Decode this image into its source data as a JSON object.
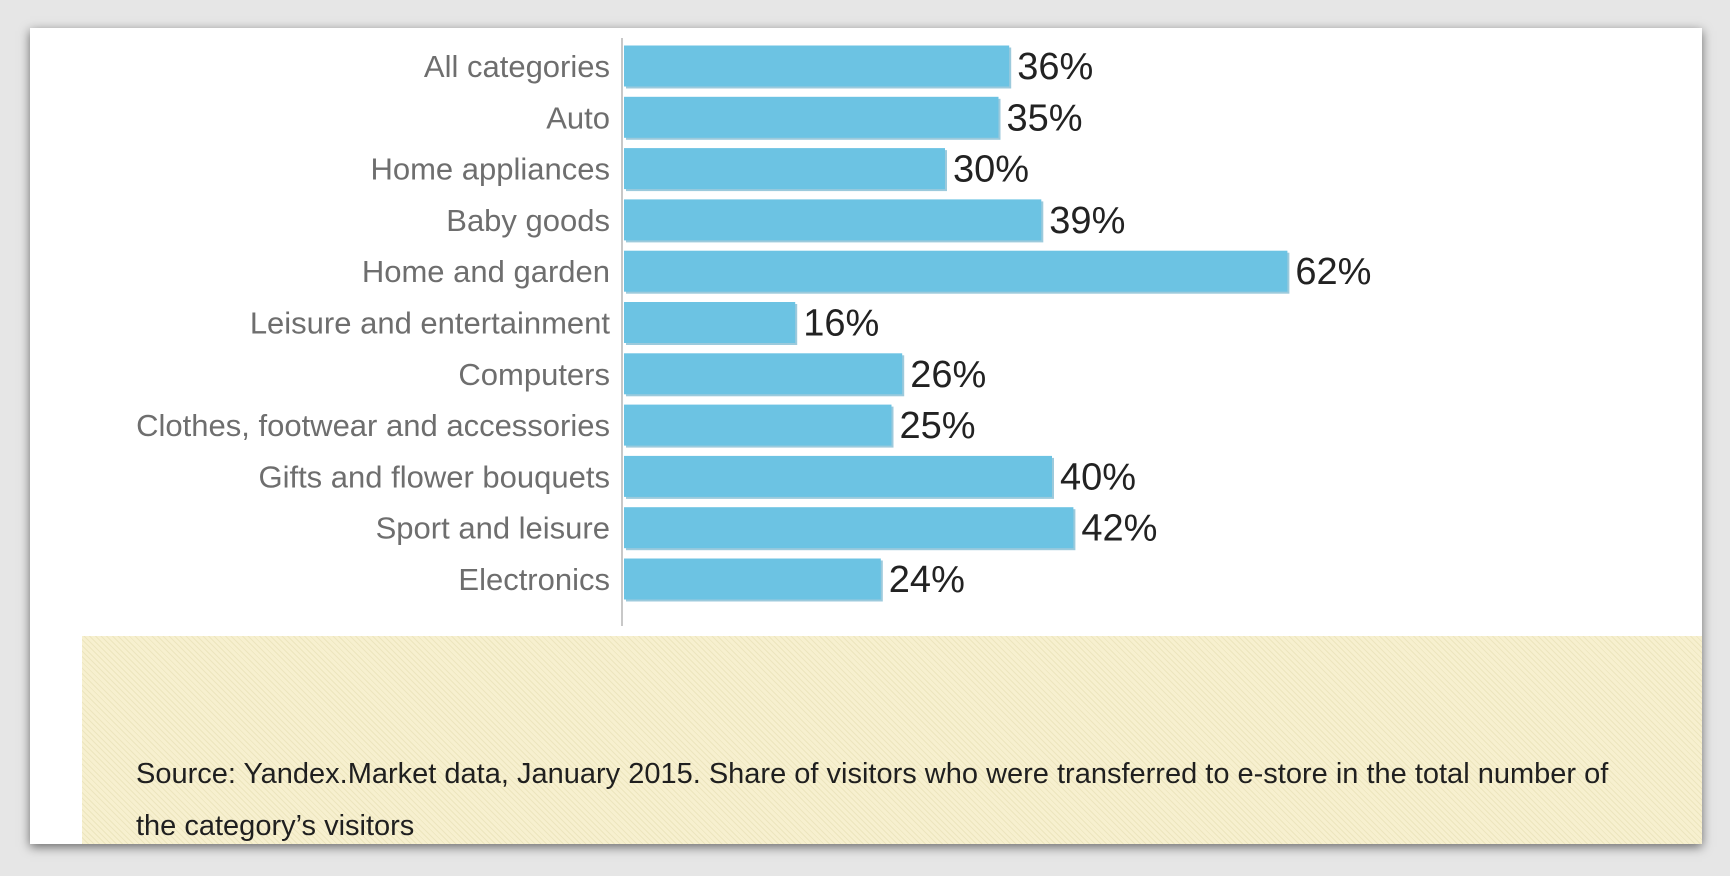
{
  "chart_data": {
    "type": "bar",
    "orientation": "horizontal",
    "categories": [
      "All categories",
      "Auto",
      "Home appliances",
      "Baby goods",
      "Home and garden",
      "Leisure and entertainment",
      "Computers",
      "Clothes, footwear and accessories",
      "Gifts and flower bouquets",
      "Sport and leisure",
      "Electronics"
    ],
    "values": [
      36,
      35,
      30,
      39,
      62,
      16,
      26,
      25,
      40,
      42,
      24
    ],
    "value_labels": [
      "36%",
      "35%",
      "30%",
      "39%",
      "62%",
      "16%",
      "26%",
      "25%",
      "40%",
      "42%",
      "24%"
    ],
    "xlim": [
      0,
      100
    ],
    "grid": false,
    "bar_color": "#6cc3e3",
    "bar_shadow_color": "#4a9ec0"
  },
  "source_note": "Source: Yandex.Market data, January 2015. Share of visitors who were transferred to e-store in the total number of the category’s visitors"
}
